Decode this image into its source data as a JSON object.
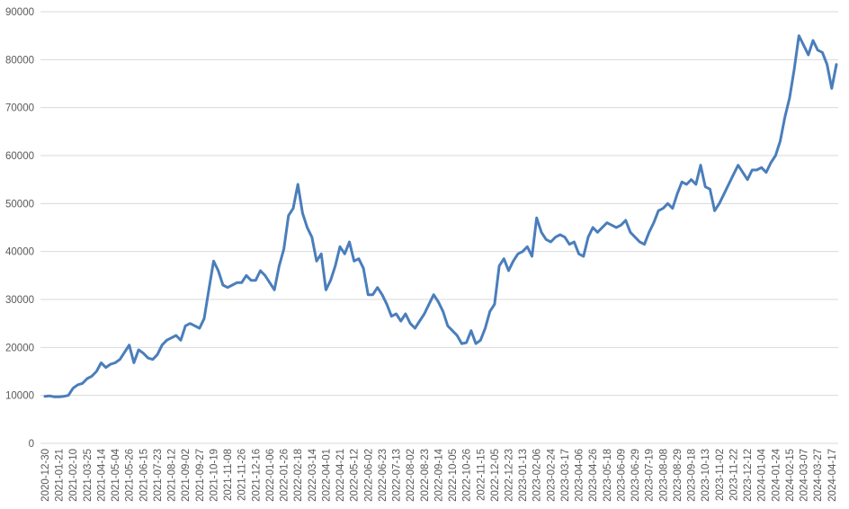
{
  "chart_data": {
    "type": "line",
    "color": "#4a7ebb",
    "grid": true,
    "ylim": [
      0,
      90000
    ],
    "yticks": [
      0,
      10000,
      20000,
      30000,
      40000,
      50000,
      60000,
      70000,
      80000,
      90000
    ],
    "categories": [
      "2020-12-30",
      null,
      null,
      "2021-01-21",
      null,
      null,
      "2021-02-10",
      null,
      null,
      "2021-03-25",
      null,
      null,
      "2021-04-14",
      null,
      null,
      "2021-05-04",
      null,
      null,
      "2021-05-26",
      null,
      null,
      "2021-06-15",
      null,
      null,
      "2021-07-23",
      null,
      null,
      "2021-08-12",
      null,
      null,
      "2021-09-02",
      null,
      null,
      "2021-09-27",
      null,
      null,
      "2021-10-19",
      null,
      null,
      "2021-11-08",
      null,
      null,
      "2021-11-26",
      null,
      null,
      "2021-12-16",
      null,
      null,
      "2022-01-06",
      null,
      null,
      "2022-01-26",
      null,
      null,
      "2022-02-18",
      null,
      null,
      "2022-03-14",
      null,
      null,
      "2022-04-01",
      null,
      null,
      "2022-04-21",
      null,
      null,
      "2022-05-12",
      null,
      null,
      "2022-06-02",
      null,
      null,
      "2022-06-23",
      null,
      null,
      "2022-07-13",
      null,
      null,
      "2022-08-02",
      null,
      null,
      "2022-08-23",
      null,
      null,
      "2022-09-14",
      null,
      null,
      "2022-10-05",
      null,
      null,
      "2022-10-26",
      null,
      null,
      "2022-11-15",
      null,
      null,
      "2022-12-05",
      null,
      null,
      "2022-12-23",
      null,
      null,
      "2023-01-13",
      null,
      null,
      "2023-02-06",
      null,
      null,
      "2023-02-24",
      null,
      null,
      "2023-03-17",
      null,
      null,
      "2023-04-06",
      null,
      null,
      "2023-04-26",
      null,
      null,
      "2023-05-18",
      null,
      null,
      "2023-06-09",
      null,
      null,
      "2023-06-29",
      null,
      null,
      "2023-07-19",
      null,
      null,
      "2023-08-08",
      null,
      null,
      "2023-08-29",
      null,
      null,
      "2023-09-18",
      null,
      null,
      "2023-10-13",
      null,
      null,
      "2023-11-02",
      null,
      null,
      "2023-11-22",
      null,
      null,
      "2023-12-12",
      null,
      null,
      "2024-01-04",
      null,
      null,
      "2024-01-24",
      null,
      null,
      "2024-02-15",
      null,
      null,
      "2024-03-07",
      null,
      null,
      "2024-03-27",
      null,
      null,
      "2024-04-17",
      null
    ],
    "values": [
      9800,
      9900,
      9700,
      9700,
      9800,
      10000,
      11500,
      12200,
      12500,
      13500,
      14000,
      15000,
      16800,
      15800,
      16500,
      16800,
      17500,
      19000,
      20500,
      16800,
      19500,
      18800,
      17800,
      17500,
      18500,
      20500,
      21500,
      22000,
      22500,
      21500,
      24500,
      25000,
      24500,
      24000,
      26000,
      32000,
      38000,
      36000,
      33000,
      32500,
      33000,
      33500,
      33500,
      35000,
      34000,
      34000,
      36000,
      35000,
      33500,
      32000,
      37000,
      40500,
      47500,
      49000,
      54000,
      48000,
      45000,
      43000,
      38000,
      39500,
      32000,
      34000,
      37000,
      41000,
      39500,
      42000,
      38000,
      38500,
      36500,
      31000,
      31000,
      32500,
      31000,
      29000,
      26500,
      27000,
      25500,
      27000,
      25000,
      24000,
      25500,
      27000,
      29000,
      31000,
      29500,
      27500,
      24500,
      23500,
      22500,
      20800,
      21000,
      23500,
      20800,
      21500,
      24000,
      27500,
      29000,
      37000,
      38500,
      36000,
      38000,
      39500,
      40000,
      41000,
      39000,
      47000,
      44000,
      42500,
      42000,
      43000,
      43500,
      43000,
      41500,
      42000,
      39500,
      39000,
      43000,
      45000,
      44000,
      45000,
      46000,
      45500,
      45000,
      45500,
      46500,
      44000,
      43000,
      42000,
      41500,
      44000,
      46000,
      48500,
      49000,
      50000,
      49000,
      52000,
      54500,
      54000,
      55000,
      54000,
      58000,
      53500,
      53000,
      48500,
      50000,
      52000,
      54000,
      56000,
      58000,
      56500,
      55000,
      57000,
      57000,
      57500,
      56500,
      58500,
      60000,
      63000,
      68000,
      72000,
      78000,
      85000,
      83000,
      81000,
      84000,
      82000,
      81500,
      79000,
      74000,
      79000
    ]
  }
}
